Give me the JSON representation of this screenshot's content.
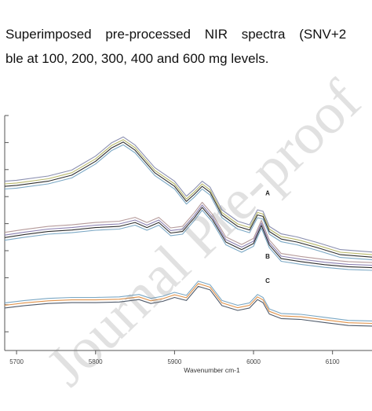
{
  "caption": {
    "line1": "Superimposed pre-processed NIR spectra (SNV+2",
    "line2": "ble at 100, 200, 300, 400 and 600 mg levels."
  },
  "watermark": "Journal Pre-proof",
  "chart_data": {
    "type": "line",
    "title": "",
    "xlabel": "Wavenumber cm-1",
    "ylabel": "",
    "x_ticks": [
      "5700",
      "5800",
      "5900",
      "6000",
      "6100"
    ],
    "xlim": [
      5685,
      6150
    ],
    "grid": false,
    "legend": "none",
    "annotations": [
      "A",
      "B",
      "C"
    ],
    "series": [
      {
        "label": "A",
        "colors": [
          "#2f2f2f",
          "#7aa7c4",
          "#b7b76a",
          "#8a8fb0"
        ],
        "x": [
          5685,
          5700,
          5740,
          5770,
          5800,
          5820,
          5835,
          5850,
          5875,
          5900,
          5915,
          5925,
          5935,
          5945,
          5960,
          5980,
          5995,
          6005,
          6012,
          6020,
          6035,
          6055,
          6080,
          6110,
          6150
        ],
        "y": [
          4.65,
          4.68,
          4.82,
          5.02,
          5.48,
          5.92,
          6.12,
          5.85,
          5.1,
          4.65,
          4.15,
          4.38,
          4.65,
          4.45,
          3.7,
          3.32,
          3.2,
          3.7,
          3.65,
          3.15,
          2.9,
          2.8,
          2.62,
          2.38,
          2.3
        ]
      },
      {
        "label": "B",
        "colors": [
          "#2f2f2f",
          "#7aa7c4",
          "#8a7fb0",
          "#b59a9a"
        ],
        "x": [
          5685,
          5710,
          5740,
          5770,
          5800,
          5830,
          5850,
          5865,
          5880,
          5895,
          5910,
          5925,
          5935,
          5948,
          5965,
          5985,
          6000,
          6010,
          6020,
          6035,
          6060,
          6090,
          6120,
          6150
        ],
        "y": [
          2.95,
          3.05,
          3.15,
          3.2,
          3.28,
          3.32,
          3.45,
          3.28,
          3.45,
          3.1,
          3.15,
          3.6,
          3.95,
          3.55,
          2.8,
          2.55,
          2.75,
          3.35,
          2.7,
          2.25,
          2.15,
          2.05,
          1.98,
          1.95
        ]
      },
      {
        "label": "C",
        "colors": [
          "#e0924a",
          "#4f5a6a",
          "#7aa7c4"
        ],
        "x": [
          5685,
          5710,
          5740,
          5770,
          5800,
          5830,
          5855,
          5870,
          5885,
          5900,
          5915,
          5930,
          5945,
          5960,
          5980,
          5995,
          6005,
          6012,
          6020,
          6035,
          6060,
          6090,
          6120,
          6150
        ],
        "y": [
          0.7,
          0.78,
          0.85,
          0.88,
          0.88,
          0.9,
          0.98,
          0.85,
          0.92,
          1.05,
          0.95,
          1.42,
          1.3,
          0.78,
          0.62,
          0.7,
          0.98,
          0.88,
          0.5,
          0.35,
          0.32,
          0.22,
          0.12,
          0.1
        ]
      }
    ]
  }
}
